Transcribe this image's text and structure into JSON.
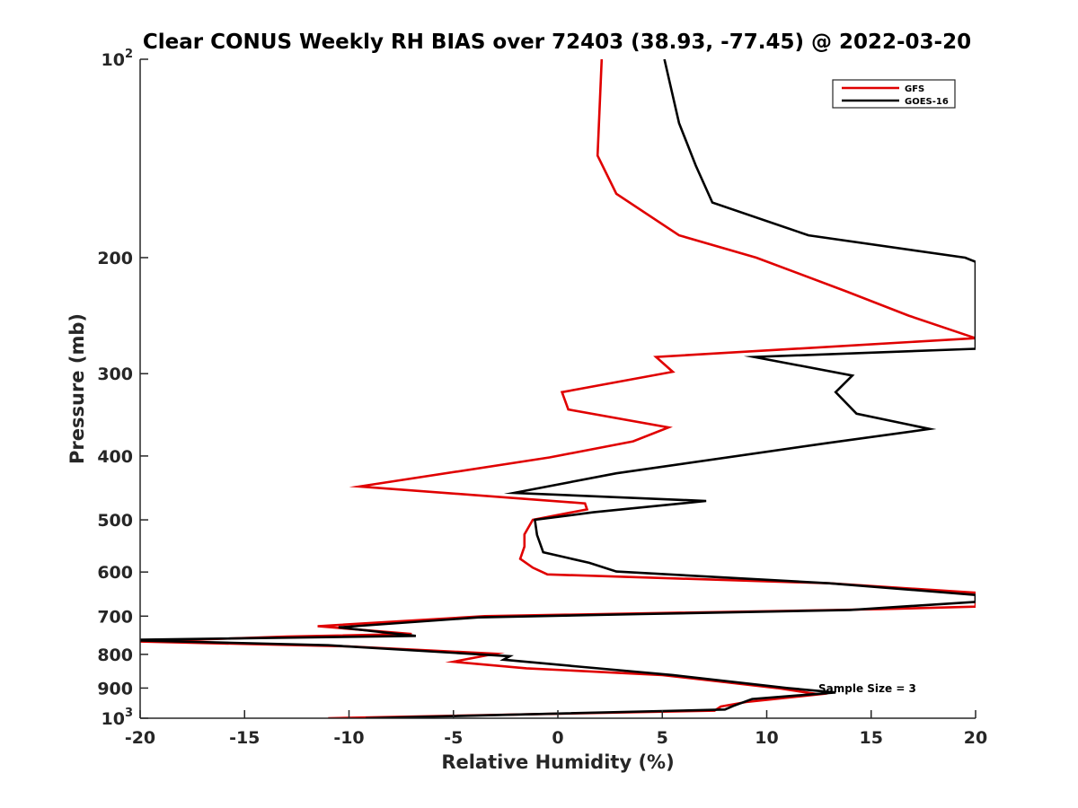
{
  "chart_data": {
    "type": "line",
    "title": "Clear CONUS Weekly RH BIAS over 72403 (38.93, -77.45) @ 2022-03-20",
    "xlabel": "Relative Humidity (%)",
    "ylabel": "Pressure (mb)",
    "xlim": [
      -20,
      20
    ],
    "ylim": [
      100,
      1000
    ],
    "y_scale": "log",
    "y_reversed": true,
    "grid": false,
    "legend_position": "top-right",
    "x_ticks": [
      -20,
      -15,
      -10,
      -5,
      0,
      5,
      10,
      15,
      20
    ],
    "x_tick_labels": [
      "-20",
      "-15",
      "-10",
      "-5",
      "0",
      "5",
      "10",
      "15",
      "20"
    ],
    "y_ticks": [
      100,
      200,
      300,
      400,
      500,
      600,
      700,
      800,
      900,
      1000
    ],
    "y_tick_labels": [
      {
        "base": "10",
        "exp": "2"
      },
      {
        "base": "200",
        "exp": ""
      },
      {
        "base": "300",
        "exp": ""
      },
      {
        "base": "400",
        "exp": ""
      },
      {
        "base": "500",
        "exp": ""
      },
      {
        "base": "600",
        "exp": ""
      },
      {
        "base": "700",
        "exp": ""
      },
      {
        "base": "800",
        "exp": ""
      },
      {
        "base": "900",
        "exp": ""
      },
      {
        "base": "10",
        "exp": "3"
      }
    ],
    "annotation": "Sample Size = 3",
    "series": [
      {
        "name": "GFS",
        "color": "#e00000",
        "points": [
          [
            2.1,
            100
          ],
          [
            1.9,
            140
          ],
          [
            2.8,
            160
          ],
          [
            5.8,
            185
          ],
          [
            9.5,
            200
          ],
          [
            13.8,
            225
          ],
          [
            16.8,
            245
          ],
          [
            20,
            265
          ],
          [
            4.7,
            283
          ],
          [
            5.5,
            298
          ],
          [
            0.2,
            320
          ],
          [
            0.5,
            340
          ],
          [
            5.3,
            362
          ],
          [
            3.6,
            380
          ],
          [
            -0.4,
            402
          ],
          [
            -9.5,
            445
          ],
          [
            1.3,
            472
          ],
          [
            1.4,
            482
          ],
          [
            -1.2,
            500
          ],
          [
            -1.6,
            526
          ],
          [
            -1.6,
            549
          ],
          [
            -1.8,
            573
          ],
          [
            -1.2,
            591
          ],
          [
            -0.5,
            605
          ],
          [
            13,
            624
          ],
          [
            20,
            645
          ],
          [
            20,
            677
          ],
          [
            15.5,
            683
          ],
          [
            -3.5,
            700
          ],
          [
            -11.5,
            725
          ],
          [
            -7,
            745
          ],
          [
            -13,
            752
          ],
          [
            -20,
            765
          ],
          [
            -10,
            778
          ],
          [
            -3,
            798
          ],
          [
            -5,
            821
          ],
          [
            -1.5,
            840
          ],
          [
            5,
            860
          ],
          [
            10.5,
            900
          ],
          [
            12.5,
            920
          ],
          [
            9,
            945
          ],
          [
            7.8,
            960
          ],
          [
            7.5,
            974
          ],
          [
            -11,
            1000
          ]
        ]
      },
      {
        "name": "GOES-16",
        "color": "#000000",
        "points": [
          [
            5.1,
            100
          ],
          [
            5.8,
            125
          ],
          [
            6.6,
            145
          ],
          [
            7.4,
            165
          ],
          [
            12,
            185
          ],
          [
            19.5,
            200
          ],
          [
            20,
            203
          ],
          [
            20,
            265
          ],
          [
            20,
            275
          ],
          [
            9.4,
            283
          ],
          [
            14.1,
            302
          ],
          [
            13.3,
            320
          ],
          [
            14.3,
            345
          ],
          [
            17.8,
            364
          ],
          [
            13,
            382
          ],
          [
            2.8,
            425
          ],
          [
            -2.1,
            455
          ],
          [
            7.1,
            468
          ],
          [
            1.7,
            487
          ],
          [
            -1.1,
            500
          ],
          [
            -1.0,
            527
          ],
          [
            -0.7,
            560
          ],
          [
            1.5,
            581
          ],
          [
            2.8,
            599
          ],
          [
            13,
            624
          ],
          [
            20,
            650
          ],
          [
            20,
            666
          ],
          [
            14,
            685
          ],
          [
            4,
            695
          ],
          [
            -3.8,
            703
          ],
          [
            -10.5,
            728
          ],
          [
            -6.8,
            750
          ],
          [
            -20,
            760
          ],
          [
            -20,
            762
          ],
          [
            -11,
            775
          ],
          [
            -2.3,
            805
          ],
          [
            -2.6,
            815
          ],
          [
            1,
            835
          ],
          [
            5.5,
            860
          ],
          [
            11,
            900
          ],
          [
            13.3,
            914
          ],
          [
            9.3,
            935
          ],
          [
            8.4,
            958
          ],
          [
            8.0,
            970
          ],
          [
            -9.2,
            1000
          ]
        ]
      }
    ]
  }
}
